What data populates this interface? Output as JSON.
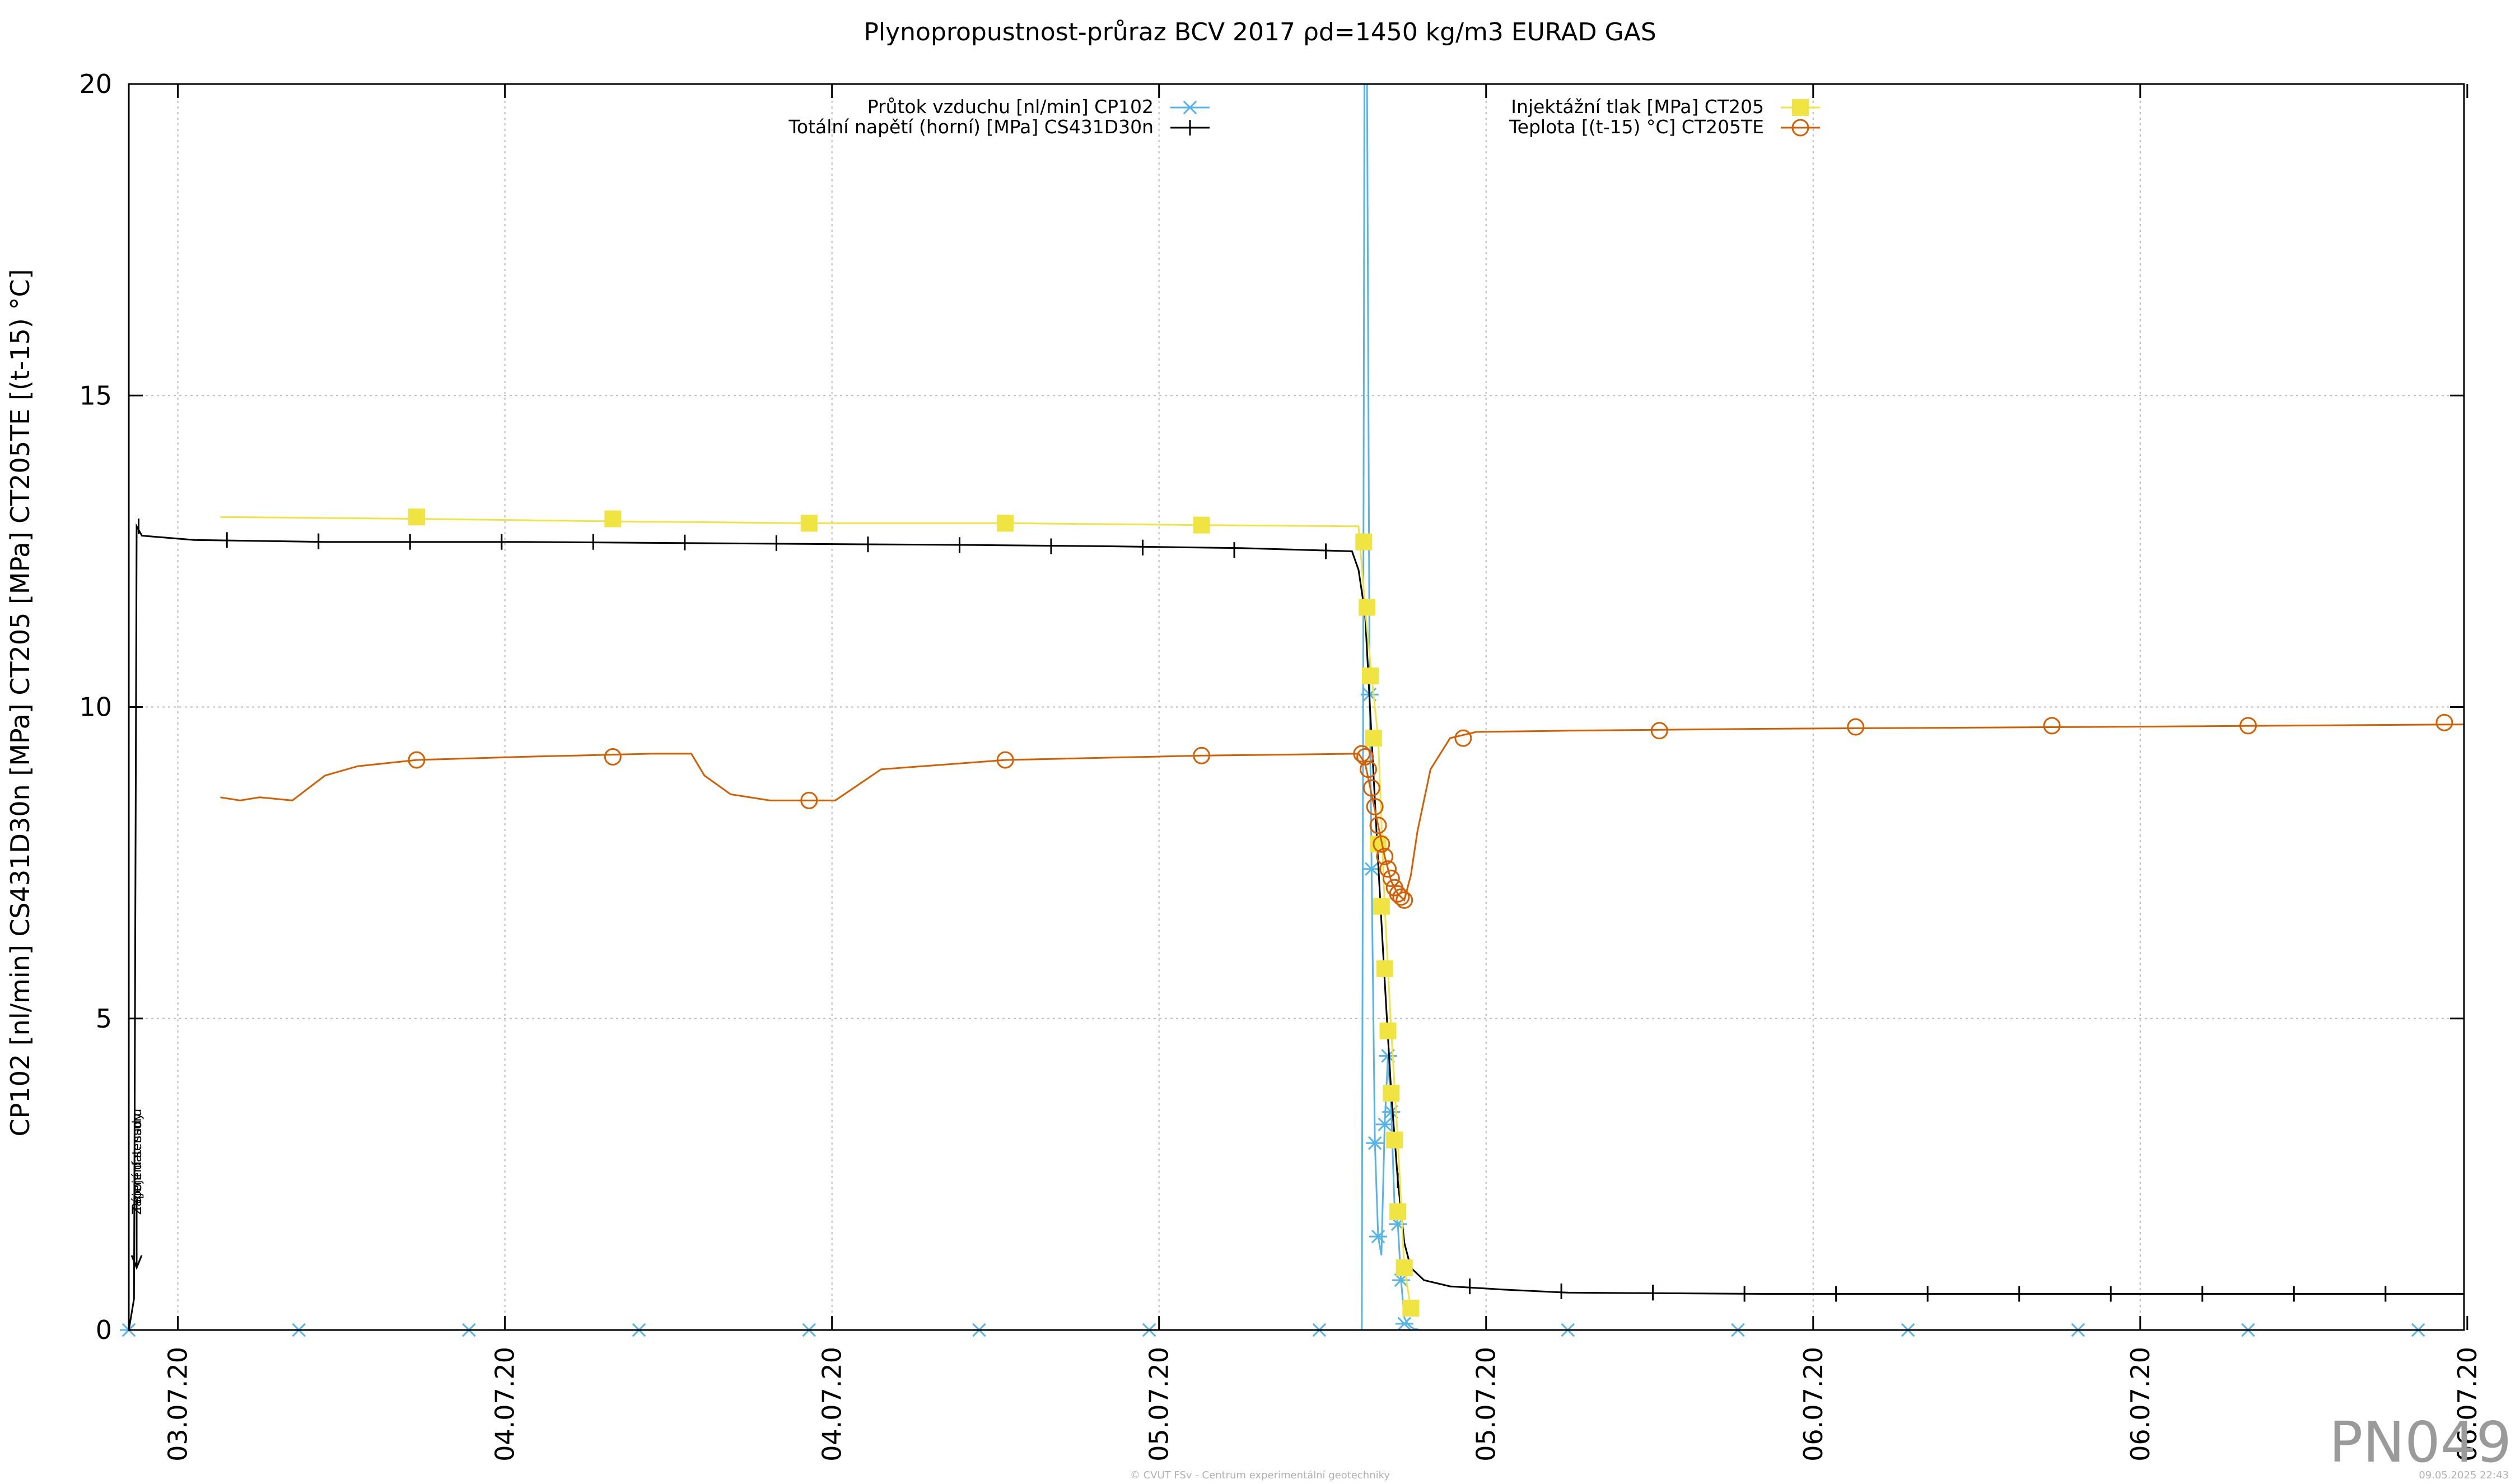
{
  "chart_data": {
    "type": "line",
    "title": "Plynopropustnost-průraz BCV 2017 ρd=1450 kg/m3 EURAD GAS",
    "ylabel": "CP102 [nl/min] CS431D30n [MPa] CT205 [MPa] CT205TE [(t-15) °C]",
    "ylim": [
      0,
      20
    ],
    "yticks": [
      0,
      5,
      10,
      15,
      20
    ],
    "xlim": [
      0,
      3.57
    ],
    "x_unit": "days from plot start (x tick labels are dates)",
    "xticks": [
      {
        "x": 0.075,
        "label": "03.07.20"
      },
      {
        "x": 0.575,
        "label": "04.07.20"
      },
      {
        "x": 1.075,
        "label": "04.07.20"
      },
      {
        "x": 1.575,
        "label": "05.07.20"
      },
      {
        "x": 2.075,
        "label": "05.07.20"
      },
      {
        "x": 2.575,
        "label": "06.07.20"
      },
      {
        "x": 3.075,
        "label": "06.07.20"
      },
      {
        "x": 3.575,
        "label": "06.07.20"
      }
    ],
    "grid": true,
    "legend_position": "top",
    "series": [
      {
        "name": "Průtok vzduchu [nl/min] CP102",
        "color": "#56b4e9",
        "marker": "asterisk",
        "x": [
          0.0,
          0.26,
          0.52,
          0.78,
          1.04,
          1.3,
          1.56,
          1.82,
          1.885,
          1.889,
          1.893,
          1.897,
          1.9,
          1.905,
          1.91,
          1.915,
          1.92,
          1.925,
          1.93,
          1.935,
          1.94,
          1.945,
          1.95,
          1.955,
          1.96,
          1.965,
          1.97,
          1.975,
          2.2,
          2.46,
          2.72,
          2.98,
          3.24,
          3.5,
          3.54
        ],
        "y": [
          0,
          0,
          0,
          0,
          0,
          0,
          0,
          0,
          0,
          20,
          20,
          10.2,
          7.4,
          3.0,
          1.5,
          1.2,
          3.3,
          4.4,
          3.5,
          2.0,
          1.7,
          0.8,
          0.2,
          0.1,
          0.05,
          0.02,
          0.01,
          0,
          0,
          0,
          0,
          0,
          0,
          0,
          0
        ],
        "point_x": [
          0.0,
          0.26,
          0.52,
          0.78,
          1.04,
          1.3,
          1.56,
          1.82,
          1.897,
          1.9,
          1.905,
          1.91,
          1.92,
          1.925,
          1.93,
          1.94,
          1.945,
          1.95,
          2.2,
          2.46,
          2.72,
          2.98,
          3.24,
          3.5
        ],
        "point_y": [
          0,
          0,
          0,
          0,
          0,
          0,
          0,
          0,
          10.2,
          7.4,
          3.0,
          1.5,
          3.3,
          4.4,
          3.5,
          1.7,
          0.8,
          0.1,
          0,
          0,
          0,
          0,
          0,
          0
        ]
      },
      {
        "name": "Totální napětí (horní) [MPa] CS431D30n",
        "color": "#000000",
        "marker": "plus",
        "x": [
          0.0,
          0.008,
          0.012,
          0.02,
          0.1,
          0.3,
          0.6,
          1.0,
          1.3,
          1.5,
          1.7,
          1.87,
          1.88,
          1.89,
          1.9,
          1.91,
          1.92,
          1.93,
          1.94,
          1.95,
          1.96,
          1.98,
          2.02,
          2.1,
          2.2,
          2.5,
          3.0,
          3.57
        ],
        "y": [
          0.0,
          0.5,
          12.9,
          12.75,
          12.68,
          12.65,
          12.65,
          12.62,
          12.6,
          12.58,
          12.55,
          12.5,
          12.2,
          11.5,
          9.5,
          7.5,
          5.6,
          3.8,
          2.4,
          1.4,
          1.0,
          0.8,
          0.7,
          0.65,
          0.6,
          0.58,
          0.58,
          0.58
        ],
        "point_x": [
          0.015,
          0.15,
          0.29,
          0.43,
          0.57,
          0.71,
          0.85,
          0.99,
          1.13,
          1.27,
          1.41,
          1.55,
          1.69,
          1.83,
          1.94,
          2.05,
          2.19,
          2.33,
          2.47,
          2.61,
          2.75,
          2.89,
          3.03,
          3.17,
          3.31,
          3.45,
          3.57
        ],
        "point_y": [
          12.9,
          12.68,
          12.66,
          12.65,
          12.65,
          12.65,
          12.64,
          12.63,
          12.61,
          12.6,
          12.58,
          12.56,
          12.52,
          12.5,
          2.4,
          0.7,
          0.62,
          0.6,
          0.58,
          0.58,
          0.58,
          0.58,
          0.58,
          0.58,
          0.58,
          0.58,
          0.58
        ]
      },
      {
        "name": "Injektážní tlak [MPa] CT205",
        "color": "#f0e442",
        "marker": "square",
        "x": [
          0.14,
          0.44,
          0.74,
          1.04,
          1.34,
          1.64,
          1.88,
          1.89,
          1.9,
          1.91,
          1.92,
          1.93,
          1.94,
          1.95,
          1.96
        ],
        "y": [
          13.05,
          13.02,
          12.98,
          12.95,
          12.95,
          12.92,
          12.9,
          11.6,
          10.5,
          9.5,
          6.8,
          4.8,
          3.05,
          1.0,
          0.35
        ],
        "point_x": [
          0.44,
          0.74,
          1.04,
          1.34,
          1.64,
          1.888,
          1.893,
          1.898,
          1.903,
          1.91,
          1.915,
          1.92,
          1.925,
          1.93,
          1.935,
          1.94,
          1.95,
          1.96
        ],
        "point_y": [
          13.05,
          13.02,
          12.95,
          12.95,
          12.92,
          12.65,
          11.6,
          10.5,
          9.5,
          7.8,
          6.8,
          5.8,
          4.8,
          3.8,
          3.05,
          1.9,
          1.0,
          0.35
        ]
      },
      {
        "name": "Teplota [(t-15) °C] CT205TE",
        "color": "#d55e00",
        "marker": "circle",
        "x": [
          0.14,
          0.17,
          0.2,
          0.25,
          0.3,
          0.35,
          0.44,
          0.6,
          0.8,
          0.86,
          0.88,
          0.92,
          0.98,
          1.04,
          1.08,
          1.15,
          1.34,
          1.64,
          1.88,
          1.89,
          1.9,
          1.91,
          1.92,
          1.93,
          1.94,
          1.95,
          1.96,
          1.97,
          1.99,
          2.02,
          2.06,
          2.2,
          2.5,
          3.0,
          3.57
        ],
        "y": [
          8.55,
          8.5,
          8.55,
          8.5,
          8.9,
          9.05,
          9.15,
          9.2,
          9.25,
          9.25,
          8.9,
          8.6,
          8.5,
          8.5,
          8.5,
          9.0,
          9.15,
          9.22,
          9.25,
          9.1,
          8.6,
          8.1,
          7.6,
          7.2,
          7.0,
          6.9,
          7.3,
          8.0,
          9.0,
          9.5,
          9.6,
          9.62,
          9.65,
          9.68,
          9.72
        ],
        "point_x": [
          0.44,
          0.74,
          1.04,
          1.34,
          1.64,
          1.885,
          1.89,
          1.895,
          1.9,
          1.905,
          1.91,
          1.915,
          1.92,
          1.925,
          1.93,
          1.935,
          1.94,
          1.945,
          1.95,
          2.04,
          2.34,
          2.64,
          2.94,
          3.24,
          3.54
        ],
        "point_y": [
          9.15,
          9.2,
          8.5,
          9.15,
          9.22,
          9.25,
          9.2,
          9.0,
          8.7,
          8.4,
          8.1,
          7.8,
          7.6,
          7.4,
          7.25,
          7.1,
          7.0,
          6.95,
          6.9,
          9.5,
          9.62,
          9.68,
          9.7,
          9.7,
          9.75
        ]
      }
    ],
    "annotations": [
      {
        "text": "Zapojení sensoru",
        "x": 0.012,
        "y": 2.7
      },
      {
        "text": "Pájení dat. sady",
        "x": 0.012,
        "y": 2.7
      }
    ],
    "arrow": {
      "x": 0.012,
      "y_from": 2.1,
      "y_to": 1.0
    }
  },
  "watermark": "PN049",
  "footer": {
    "credit": "© CVUT FSv - Centrum experimentální geotechniky",
    "timestamp": "09.05.2025 22:43"
  }
}
